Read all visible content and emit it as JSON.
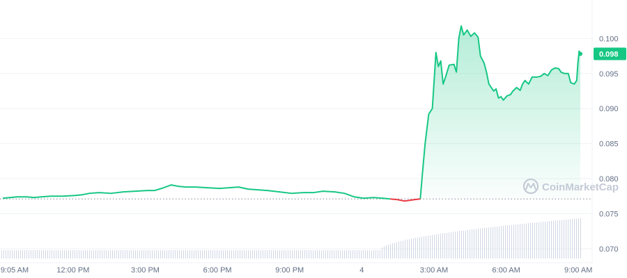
{
  "watermark": "CoinMarketCap",
  "colors": {
    "up": "#16c784",
    "down": "#ea3943",
    "grid": "#eff2f5",
    "axis_text": "#616e85",
    "volume": "#cfd6e4",
    "baseline": "#7d8492"
  },
  "chart_data": {
    "type": "area",
    "x_ticks": [
      "9:05 AM",
      "12:00 PM",
      "3:00 PM",
      "6:00 PM",
      "9:00 PM",
      "4",
      "3:00 AM",
      "6:00 AM",
      "9:00 AM"
    ],
    "y_ticks": [
      "0.070",
      "0.075",
      "0.080",
      "0.085",
      "0.090",
      "0.095",
      "0.100"
    ],
    "ylim": [
      0.068,
      0.1045
    ],
    "baseline_price": 0.0771,
    "current_price_label": "0.098",
    "current_price": 0.0978,
    "x_range_hours": [
      0,
      24
    ],
    "series": [
      {
        "points": [
          [
            0.0,
            0.0772
          ],
          [
            0.3,
            0.0773
          ],
          [
            0.6,
            0.0774
          ],
          [
            1.0,
            0.0774
          ],
          [
            1.3,
            0.0773
          ],
          [
            1.6,
            0.0774
          ],
          [
            2.0,
            0.0775
          ],
          [
            2.5,
            0.0775
          ],
          [
            3.0,
            0.0776
          ],
          [
            3.3,
            0.0777
          ],
          [
            3.6,
            0.0779
          ],
          [
            4.0,
            0.078
          ],
          [
            4.5,
            0.0779
          ],
          [
            5.0,
            0.0781
          ],
          [
            5.5,
            0.0782
          ],
          [
            6.0,
            0.0783
          ],
          [
            6.3,
            0.0783
          ],
          [
            6.6,
            0.0786
          ],
          [
            7.0,
            0.0791
          ],
          [
            7.3,
            0.0789
          ],
          [
            7.6,
            0.0788
          ],
          [
            8.0,
            0.0788
          ],
          [
            8.5,
            0.0787
          ],
          [
            9.0,
            0.0786
          ],
          [
            9.4,
            0.0787
          ],
          [
            9.8,
            0.0788
          ],
          [
            10.2,
            0.0785
          ],
          [
            10.6,
            0.0784
          ],
          [
            11.0,
            0.0783
          ],
          [
            11.5,
            0.0781
          ],
          [
            12.0,
            0.0779
          ],
          [
            12.5,
            0.078
          ],
          [
            12.9,
            0.078
          ],
          [
            13.3,
            0.0782
          ],
          [
            13.8,
            0.0781
          ],
          [
            14.2,
            0.0779
          ],
          [
            14.6,
            0.0774
          ],
          [
            15.0,
            0.0772
          ],
          [
            15.4,
            0.0773
          ],
          [
            15.8,
            0.0772
          ],
          [
            16.1,
            0.0771
          ],
          [
            16.4,
            0.077
          ],
          [
            16.7,
            0.0768
          ],
          [
            16.9,
            0.0769
          ],
          [
            17.1,
            0.077
          ],
          [
            17.35,
            0.0771
          ],
          [
            17.42,
            0.08
          ],
          [
            17.55,
            0.085
          ],
          [
            17.7,
            0.0892
          ],
          [
            17.85,
            0.09
          ],
          [
            18.0,
            0.098
          ],
          [
            18.1,
            0.096
          ],
          [
            18.2,
            0.0968
          ],
          [
            18.3,
            0.0935
          ],
          [
            18.4,
            0.0945
          ],
          [
            18.55,
            0.0962
          ],
          [
            18.75,
            0.0963
          ],
          [
            18.85,
            0.0952
          ],
          [
            18.95,
            0.1
          ],
          [
            19.05,
            0.1018
          ],
          [
            19.15,
            0.1005
          ],
          [
            19.3,
            0.1012
          ],
          [
            19.45,
            0.1003
          ],
          [
            19.6,
            0.1008
          ],
          [
            19.75,
            0.1002
          ],
          [
            19.85,
            0.0975
          ],
          [
            20.0,
            0.0965
          ],
          [
            20.1,
            0.0952
          ],
          [
            20.2,
            0.0935
          ],
          [
            20.3,
            0.093
          ],
          [
            20.4,
            0.0925
          ],
          [
            20.5,
            0.0928
          ],
          [
            20.6,
            0.0915
          ],
          [
            20.7,
            0.0917
          ],
          [
            20.8,
            0.0912
          ],
          [
            20.95,
            0.0918
          ],
          [
            21.1,
            0.092
          ],
          [
            21.2,
            0.0925
          ],
          [
            21.35,
            0.093
          ],
          [
            21.5,
            0.0926
          ],
          [
            21.6,
            0.0935
          ],
          [
            21.7,
            0.094
          ],
          [
            21.85,
            0.0935
          ],
          [
            22.0,
            0.0945
          ],
          [
            22.2,
            0.0945
          ],
          [
            22.35,
            0.0946
          ],
          [
            22.5,
            0.095
          ],
          [
            22.65,
            0.0947
          ],
          [
            22.8,
            0.0955
          ],
          [
            22.95,
            0.0958
          ],
          [
            23.1,
            0.0957
          ],
          [
            23.2,
            0.0952
          ],
          [
            23.35,
            0.095
          ],
          [
            23.5,
            0.095
          ],
          [
            23.6,
            0.0937
          ],
          [
            23.75,
            0.0935
          ],
          [
            23.85,
            0.094
          ],
          [
            23.9,
            0.0965
          ],
          [
            23.95,
            0.0982
          ],
          [
            24.0,
            0.0978
          ]
        ]
      }
    ]
  }
}
